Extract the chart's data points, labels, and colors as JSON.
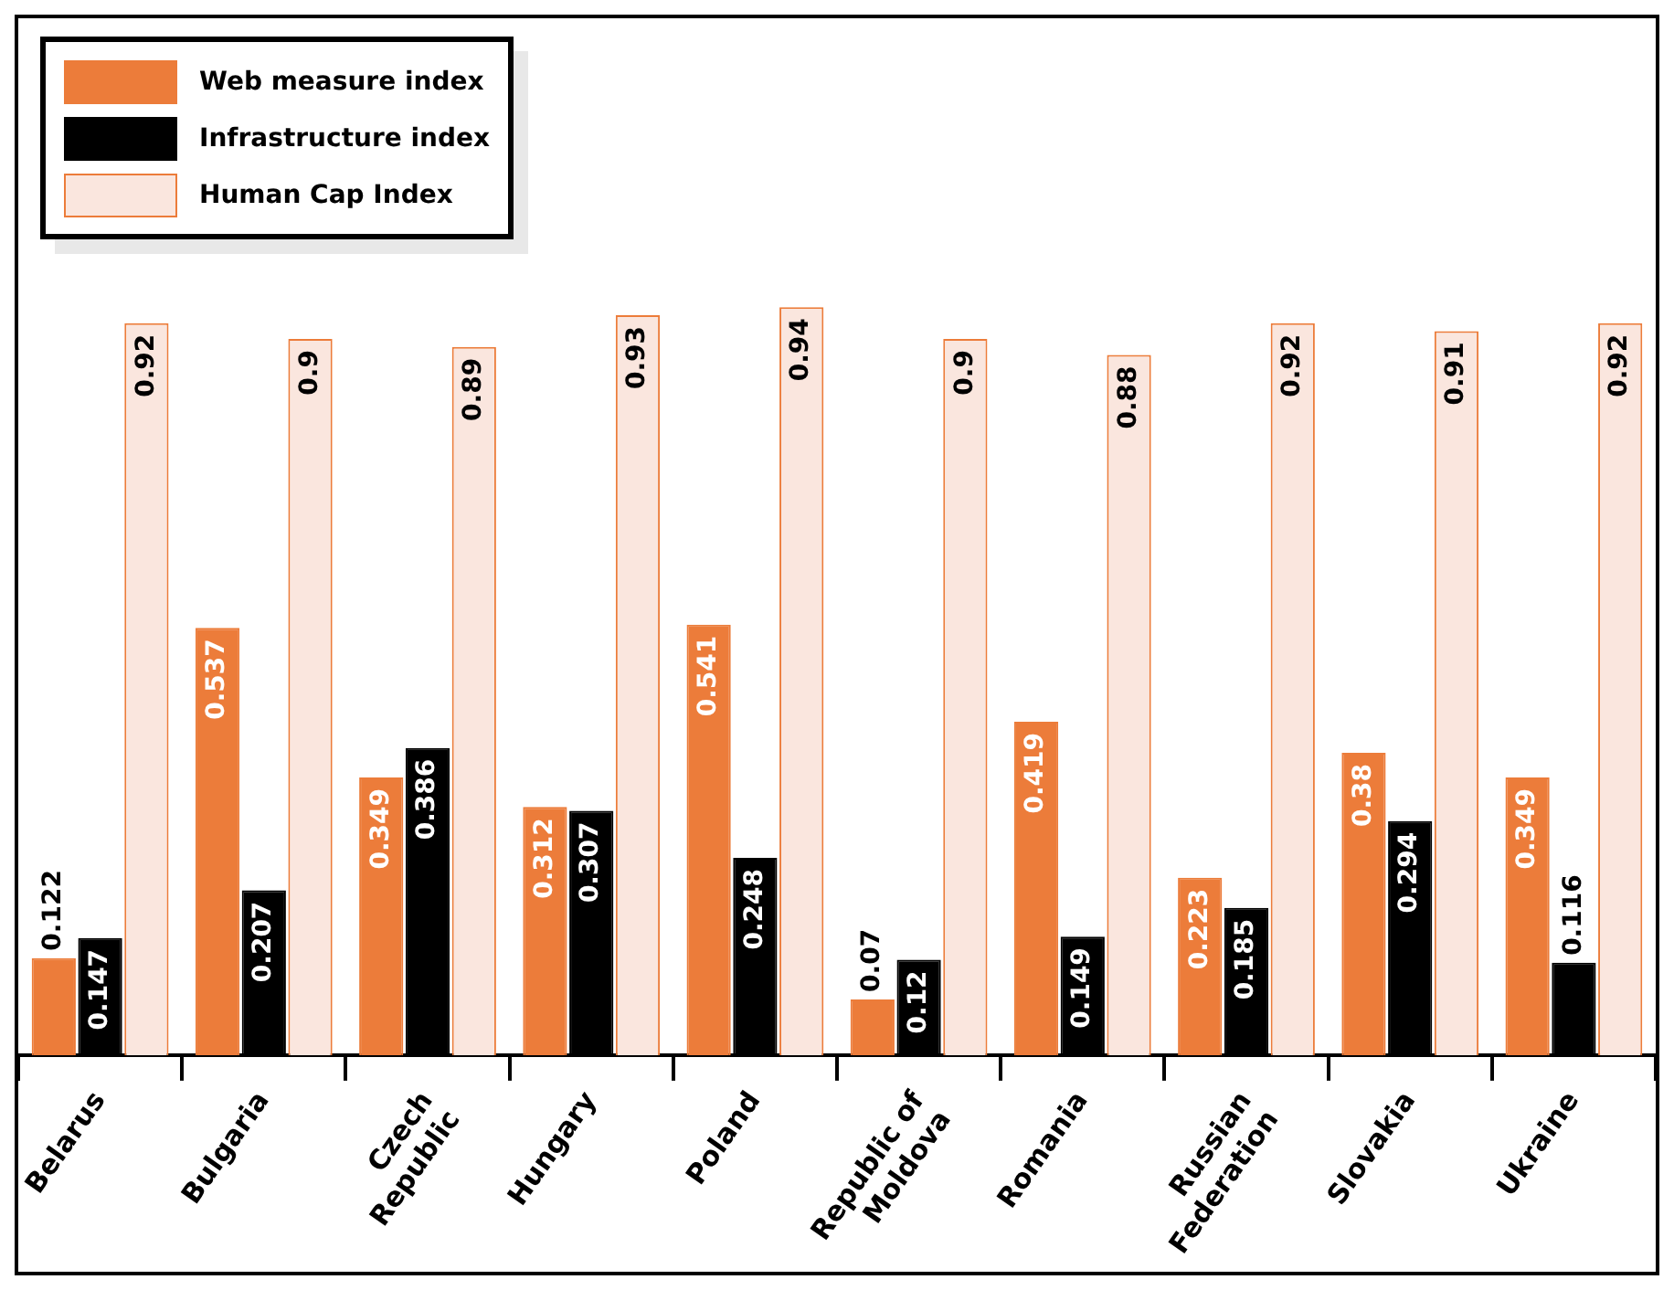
{
  "chart_data": {
    "type": "bar",
    "categories": [
      "Belarus",
      "Bulgaria",
      "Czech Republic",
      "Hungary",
      "Poland",
      "Republic of Moldova",
      "Romania",
      "Russian Federation",
      "Slovakia",
      "Ukraine"
    ],
    "series": [
      {
        "name": "Web measure index",
        "color": "#ec7c3a",
        "values": [
          0.122,
          0.537,
          0.349,
          0.312,
          0.541,
          0.07,
          0.419,
          0.223,
          0.38,
          0.349
        ]
      },
      {
        "name": "Infrastructure index",
        "color": "#000000",
        "values": [
          0.147,
          0.207,
          0.386,
          0.307,
          0.248,
          0.12,
          0.149,
          0.185,
          0.294,
          0.116
        ]
      },
      {
        "name": "Human Cap Index",
        "color": "#fae6de",
        "values": [
          0.92,
          0.9,
          0.89,
          0.93,
          0.94,
          0.9,
          0.88,
          0.92,
          0.91,
          0.92
        ]
      }
    ],
    "data_labels": true,
    "legend": "top left",
    "grid": false
  }
}
